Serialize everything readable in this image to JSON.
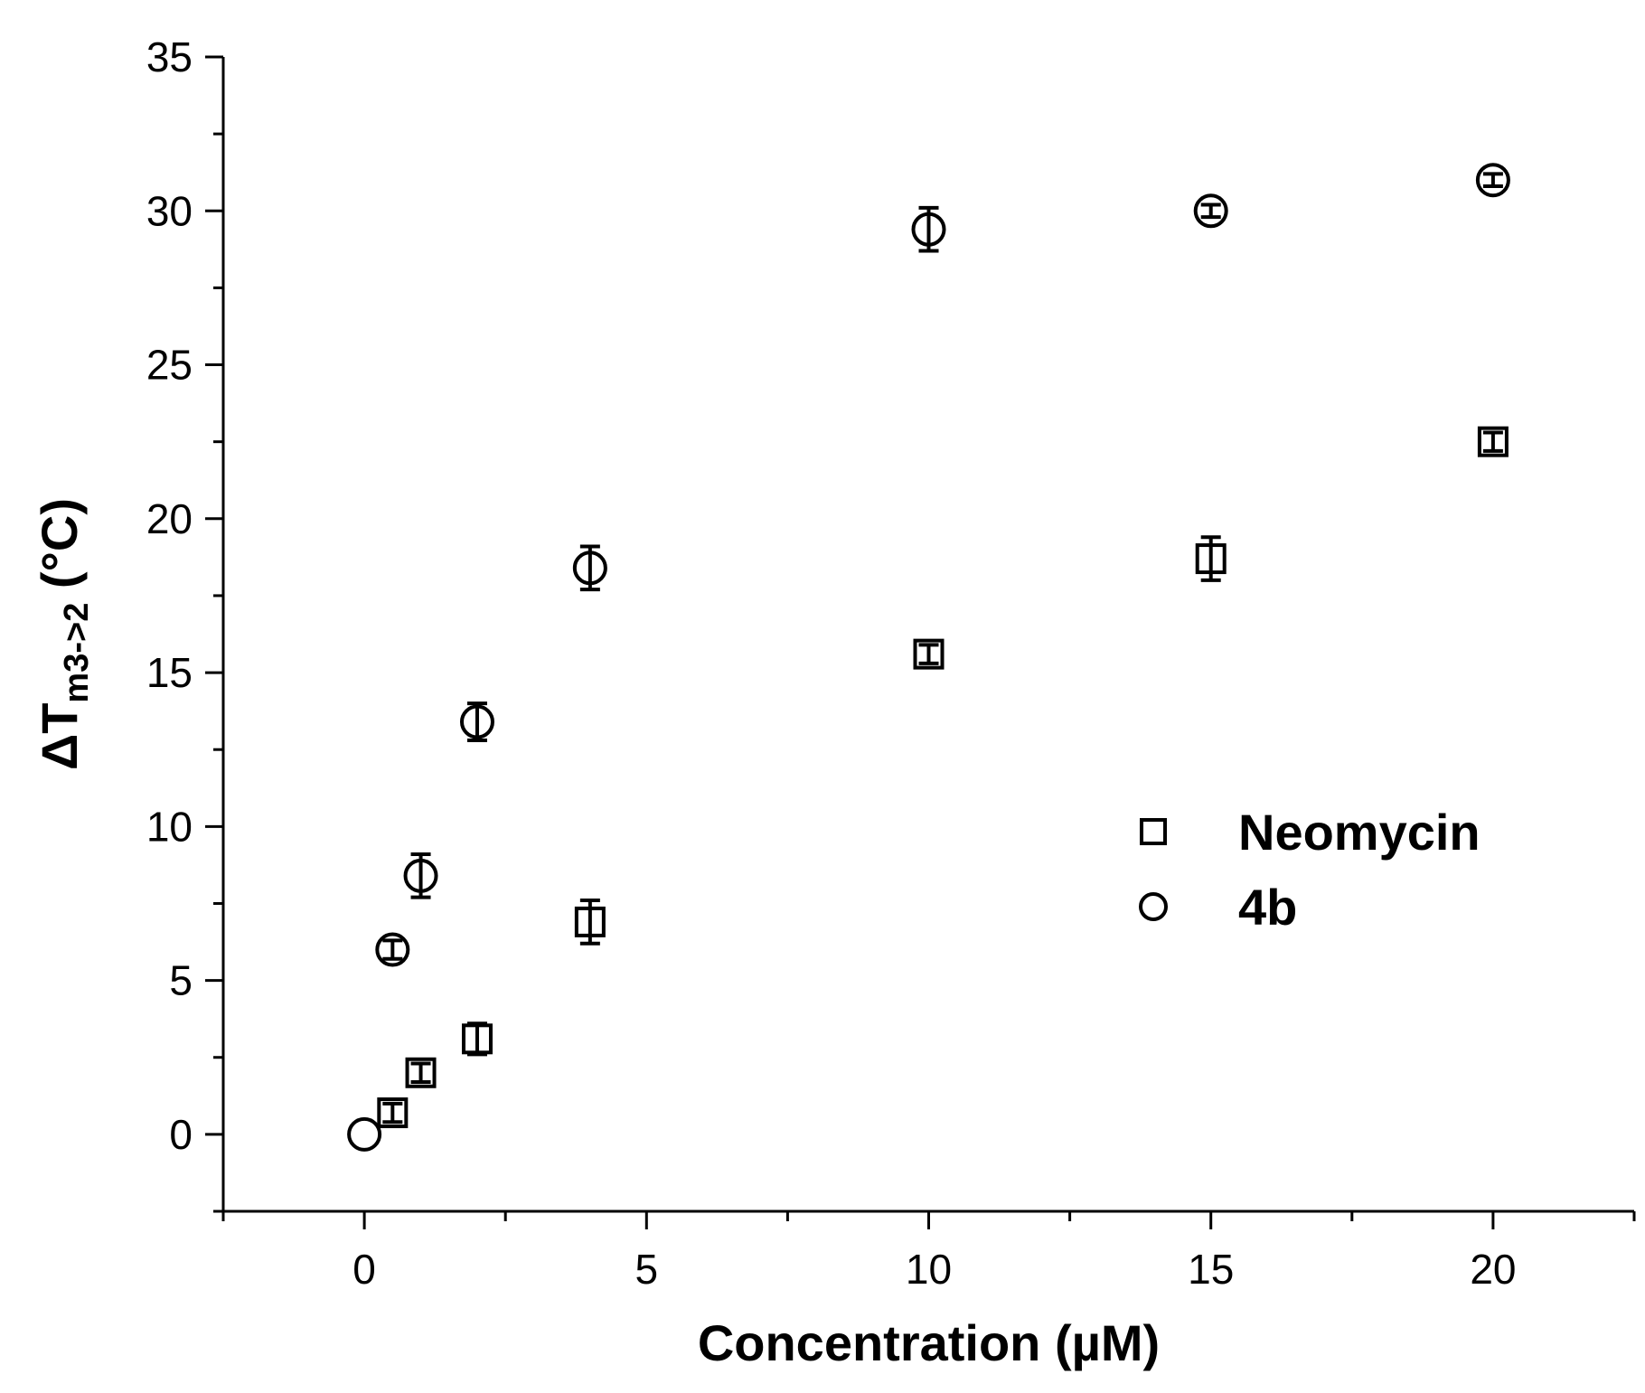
{
  "chart_data": {
    "type": "scatter",
    "title": "",
    "xlabel": "Concentration (µM)",
    "ylabel": {
      "prefix": "ΔT",
      "subscript": "m3->2",
      "suffix": " (°C)"
    },
    "xlim": [
      -2.5,
      22.5
    ],
    "ylim": [
      -2.5,
      35
    ],
    "x_ticks": [
      0,
      5,
      10,
      15,
      20
    ],
    "x_tick_labels": [
      "0",
      "5",
      "10",
      "15",
      "20"
    ],
    "x_minor_ticks": [
      -2.5,
      2.5,
      7.5,
      12.5,
      17.5,
      22.5
    ],
    "y_ticks": [
      0,
      5,
      10,
      15,
      20,
      25,
      30,
      35
    ],
    "y_tick_labels": [
      "0",
      "5",
      "10",
      "15",
      "20",
      "25",
      "30",
      "35"
    ],
    "y_minor_ticks": [
      -2.5,
      2.5,
      7.5,
      12.5,
      17.5,
      22.5,
      27.5,
      32.5
    ],
    "grid": false,
    "legend_position": "right-middle",
    "series": [
      {
        "name": "Neomycin",
        "marker": "square",
        "points": [
          {
            "x": 0.5,
            "y": 0.7,
            "err": 0.3
          },
          {
            "x": 1,
            "y": 2.0,
            "err": 0.3
          },
          {
            "x": 2,
            "y": 3.1,
            "err": 0.5
          },
          {
            "x": 4,
            "y": 6.9,
            "err": 0.7
          },
          {
            "x": 10,
            "y": 15.6,
            "err": 0.3
          },
          {
            "x": 15,
            "y": 18.7,
            "err": 0.7
          },
          {
            "x": 20,
            "y": 22.5,
            "err": 0.3
          }
        ]
      },
      {
        "name": "4b",
        "marker": "circle",
        "points": [
          {
            "x": 0,
            "y": 0.0,
            "err": 0.0
          },
          {
            "x": 0.5,
            "y": 6.0,
            "err": 0.3
          },
          {
            "x": 1,
            "y": 8.4,
            "err": 0.7
          },
          {
            "x": 2,
            "y": 13.4,
            "err": 0.6
          },
          {
            "x": 4,
            "y": 18.4,
            "err": 0.7
          },
          {
            "x": 10,
            "y": 29.4,
            "err": 0.7
          },
          {
            "x": 15,
            "y": 30.0,
            "err": 0.2
          },
          {
            "x": 20,
            "y": 31.0,
            "err": 0.2
          }
        ]
      }
    ]
  }
}
